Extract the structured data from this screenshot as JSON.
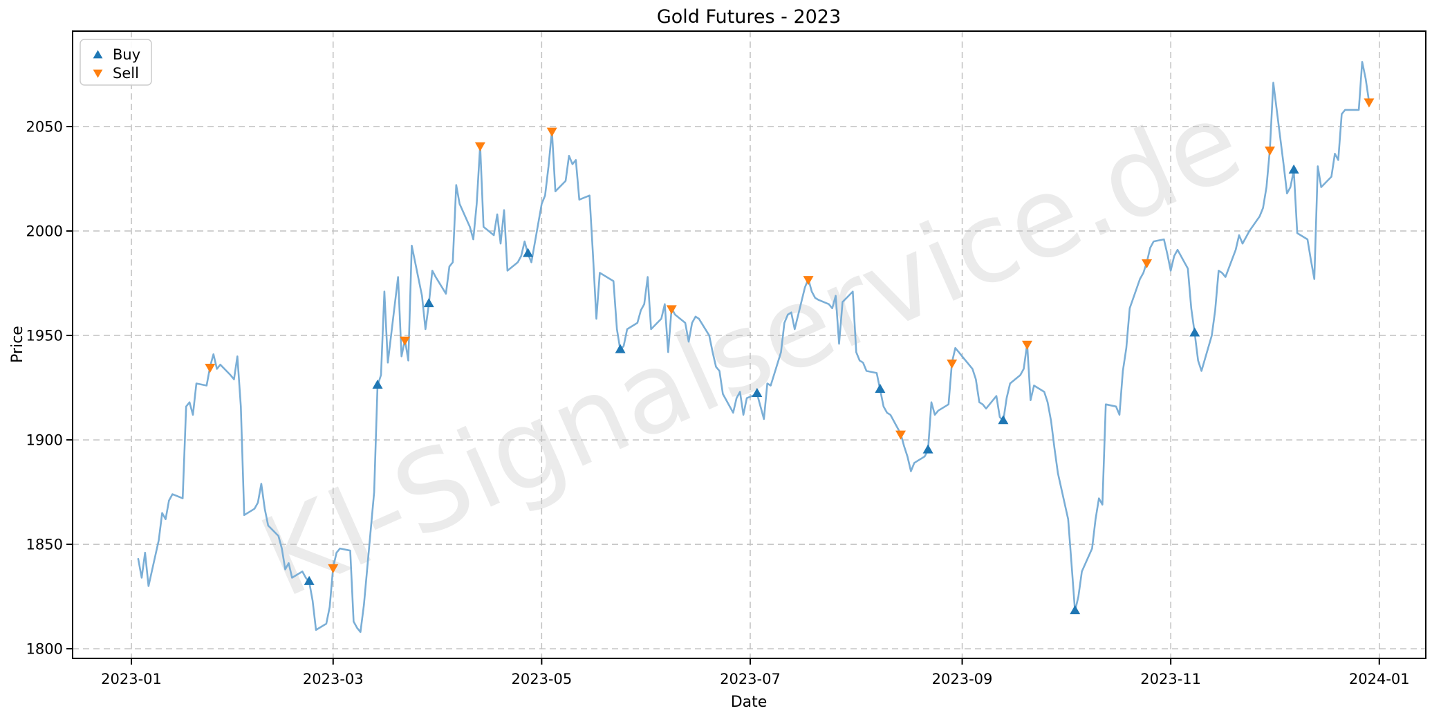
{
  "title": "Gold Futures - 2023",
  "watermark": "KI-Signalservice.de",
  "legend": {
    "position": "upper left",
    "buy_label": "Buy",
    "sell_label": "Sell"
  },
  "colors": {
    "price_line": "#7aaed6",
    "buy_marker": "#1f77b4",
    "sell_marker": "#ff7f0e",
    "grid": "#c0c0c0",
    "spine": "#000000",
    "background": "#ffffff",
    "legend_border": "#cccccc",
    "watermark_fill": "#000000",
    "watermark_opacity": 0.08
  },
  "chart_data": {
    "type": "line",
    "title": "Gold Futures - 2023",
    "xlabel": "Date",
    "ylabel": "Price",
    "grid": true,
    "grid_style": "dashed",
    "x_unit": "days_from_2023-01-01",
    "xlim": [
      -17.2,
      378.6
    ],
    "ylim": [
      1795.4,
      2095.7
    ],
    "x_ticks": [
      {
        "day": 0,
        "label": "2023-01"
      },
      {
        "day": 59,
        "label": "2023-03"
      },
      {
        "day": 120,
        "label": "2023-05"
      },
      {
        "day": 181,
        "label": "2023-07"
      },
      {
        "day": 243,
        "label": "2023-09"
      },
      {
        "day": 304,
        "label": "2023-11"
      },
      {
        "day": 365,
        "label": "2024-01"
      }
    ],
    "y_ticks": [
      1800,
      1850,
      1900,
      1950,
      2000,
      2050
    ],
    "price_line": [
      [
        2,
        1843
      ],
      [
        3,
        1834
      ],
      [
        4,
        1846
      ],
      [
        5,
        1830
      ],
      [
        8,
        1852
      ],
      [
        9,
        1865
      ],
      [
        10,
        1862
      ],
      [
        11,
        1871
      ],
      [
        12,
        1874
      ],
      [
        15,
        1872
      ],
      [
        16,
        1916
      ],
      [
        17,
        1918
      ],
      [
        18,
        1912
      ],
      [
        19,
        1927
      ],
      [
        22,
        1926
      ],
      [
        23,
        1935
      ],
      [
        24,
        1941
      ],
      [
        25,
        1934
      ],
      [
        26,
        1936
      ],
      [
        29,
        1931
      ],
      [
        30,
        1929
      ],
      [
        31,
        1940
      ],
      [
        32,
        1916
      ],
      [
        33,
        1864
      ],
      [
        36,
        1867
      ],
      [
        37,
        1870
      ],
      [
        38,
        1879
      ],
      [
        39,
        1867
      ],
      [
        40,
        1859
      ],
      [
        43,
        1854
      ],
      [
        44,
        1848
      ],
      [
        45,
        1838
      ],
      [
        46,
        1841
      ],
      [
        47,
        1834
      ],
      [
        50,
        1837
      ],
      [
        51,
        1834
      ],
      [
        52,
        1832
      ],
      [
        53,
        1823
      ],
      [
        54,
        1809
      ],
      [
        57,
        1812
      ],
      [
        58,
        1820
      ],
      [
        59,
        1839
      ],
      [
        60,
        1846
      ],
      [
        61,
        1848
      ],
      [
        64,
        1847
      ],
      [
        65,
        1813
      ],
      [
        66,
        1810
      ],
      [
        67,
        1808
      ],
      [
        68,
        1821
      ],
      [
        71,
        1875
      ],
      [
        72,
        1926
      ],
      [
        73,
        1931
      ],
      [
        74,
        1971
      ],
      [
        75,
        1937
      ],
      [
        78,
        1978
      ],
      [
        79,
        1940
      ],
      [
        80,
        1948
      ],
      [
        81,
        1938
      ],
      [
        82,
        1993
      ],
      [
        85,
        1969
      ],
      [
        86,
        1953
      ],
      [
        87,
        1965
      ],
      [
        88,
        1981
      ],
      [
        89,
        1978
      ],
      [
        92,
        1970
      ],
      [
        93,
        1983
      ],
      [
        94,
        1985
      ],
      [
        95,
        2022
      ],
      [
        96,
        2013
      ],
      [
        99,
        2002
      ],
      [
        100,
        1996
      ],
      [
        101,
        2013
      ],
      [
        102,
        2041
      ],
      [
        103,
        2002
      ],
      [
        106,
        1998
      ],
      [
        107,
        2008
      ],
      [
        108,
        1994
      ],
      [
        109,
        2010
      ],
      [
        110,
        1981
      ],
      [
        113,
        1985
      ],
      [
        114,
        1988
      ],
      [
        115,
        1995
      ],
      [
        116,
        1989
      ],
      [
        117,
        1985
      ],
      [
        120,
        2013
      ],
      [
        121,
        2017
      ],
      [
        122,
        2031
      ],
      [
        123,
        2048
      ],
      [
        124,
        2019
      ],
      [
        127,
        2024
      ],
      [
        128,
        2036
      ],
      [
        129,
        2032
      ],
      [
        130,
        2034
      ],
      [
        131,
        2015
      ],
      [
        134,
        2017
      ],
      [
        135,
        1989
      ],
      [
        136,
        1958
      ],
      [
        137,
        1980
      ],
      [
        138,
        1979
      ],
      [
        141,
        1976
      ],
      [
        142,
        1953
      ],
      [
        143,
        1943
      ],
      [
        144,
        1945
      ],
      [
        145,
        1953
      ],
      [
        148,
        1956
      ],
      [
        149,
        1962
      ],
      [
        150,
        1965
      ],
      [
        151,
        1978
      ],
      [
        152,
        1953
      ],
      [
        155,
        1958
      ],
      [
        156,
        1965
      ],
      [
        157,
        1942
      ],
      [
        158,
        1963
      ],
      [
        159,
        1960
      ],
      [
        162,
        1956
      ],
      [
        163,
        1947
      ],
      [
        164,
        1956
      ],
      [
        165,
        1959
      ],
      [
        166,
        1958
      ],
      [
        169,
        1950
      ],
      [
        170,
        1942
      ],
      [
        171,
        1935
      ],
      [
        172,
        1933
      ],
      [
        173,
        1922
      ],
      [
        176,
        1913
      ],
      [
        177,
        1920
      ],
      [
        178,
        1923
      ],
      [
        179,
        1912
      ],
      [
        180,
        1920
      ],
      [
        183,
        1922
      ],
      [
        185,
        1910
      ],
      [
        186,
        1927
      ],
      [
        187,
        1926
      ],
      [
        190,
        1942
      ],
      [
        191,
        1956
      ],
      [
        192,
        1960
      ],
      [
        193,
        1961
      ],
      [
        194,
        1953
      ],
      [
        197,
        1973
      ],
      [
        198,
        1977
      ],
      [
        199,
        1971
      ],
      [
        200,
        1968
      ],
      [
        201,
        1967
      ],
      [
        204,
        1965
      ],
      [
        205,
        1963
      ],
      [
        206,
        1969
      ],
      [
        207,
        1946
      ],
      [
        208,
        1966
      ],
      [
        211,
        1971
      ],
      [
        212,
        1942
      ],
      [
        213,
        1938
      ],
      [
        214,
        1937
      ],
      [
        215,
        1933
      ],
      [
        218,
        1932
      ],
      [
        219,
        1924
      ],
      [
        220,
        1916
      ],
      [
        221,
        1913
      ],
      [
        222,
        1912
      ],
      [
        225,
        1903
      ],
      [
        226,
        1897
      ],
      [
        227,
        1892
      ],
      [
        228,
        1885
      ],
      [
        229,
        1889
      ],
      [
        232,
        1892
      ],
      [
        233,
        1895
      ],
      [
        234,
        1918
      ],
      [
        235,
        1912
      ],
      [
        236,
        1914
      ],
      [
        239,
        1917
      ],
      [
        240,
        1937
      ],
      [
        241,
        1944
      ],
      [
        242,
        1942
      ],
      [
        243,
        1940
      ],
      [
        246,
        1934
      ],
      [
        247,
        1929
      ],
      [
        248,
        1918
      ],
      [
        249,
        1917
      ],
      [
        250,
        1915
      ],
      [
        253,
        1921
      ],
      [
        254,
        1911
      ],
      [
        255,
        1909
      ],
      [
        256,
        1920
      ],
      [
        257,
        1927
      ],
      [
        260,
        1931
      ],
      [
        261,
        1934
      ],
      [
        262,
        1946
      ],
      [
        263,
        1919
      ],
      [
        264,
        1926
      ],
      [
        267,
        1923
      ],
      [
        268,
        1918
      ],
      [
        269,
        1909
      ],
      [
        270,
        1896
      ],
      [
        271,
        1884
      ],
      [
        274,
        1862
      ],
      [
        275,
        1840
      ],
      [
        276,
        1818
      ],
      [
        277,
        1825
      ],
      [
        278,
        1837
      ],
      [
        281,
        1848
      ],
      [
        282,
        1862
      ],
      [
        283,
        1872
      ],
      [
        284,
        1869
      ],
      [
        285,
        1917
      ],
      [
        288,
        1916
      ],
      [
        289,
        1912
      ],
      [
        290,
        1933
      ],
      [
        291,
        1944
      ],
      [
        292,
        1963
      ],
      [
        295,
        1977
      ],
      [
        296,
        1980
      ],
      [
        297,
        1985
      ],
      [
        298,
        1992
      ],
      [
        299,
        1995
      ],
      [
        302,
        1996
      ],
      [
        303,
        1989
      ],
      [
        304,
        1981
      ],
      [
        305,
        1988
      ],
      [
        306,
        1991
      ],
      [
        309,
        1982
      ],
      [
        310,
        1963
      ],
      [
        311,
        1951
      ],
      [
        312,
        1938
      ],
      [
        313,
        1933
      ],
      [
        316,
        1950
      ],
      [
        317,
        1962
      ],
      [
        318,
        1981
      ],
      [
        319,
        1980
      ],
      [
        320,
        1978
      ],
      [
        323,
        1991
      ],
      [
        324,
        1998
      ],
      [
        325,
        1994
      ],
      [
        327,
        2000
      ],
      [
        330,
        2007
      ],
      [
        331,
        2011
      ],
      [
        332,
        2021
      ],
      [
        333,
        2039
      ],
      [
        334,
        2071
      ],
      [
        337,
        2032
      ],
      [
        338,
        2018
      ],
      [
        339,
        2021
      ],
      [
        340,
        2029
      ],
      [
        341,
        1999
      ],
      [
        344,
        1996
      ],
      [
        345,
        1986
      ],
      [
        346,
        1977
      ],
      [
        347,
        2031
      ],
      [
        348,
        2021
      ],
      [
        351,
        2026
      ],
      [
        352,
        2037
      ],
      [
        353,
        2034
      ],
      [
        354,
        2056
      ],
      [
        355,
        2058
      ],
      [
        359,
        2058
      ],
      [
        360,
        2081
      ],
      [
        361,
        2073
      ],
      [
        362,
        2062
      ]
    ],
    "buy_signals": [
      [
        52,
        1832
      ],
      [
        72,
        1926
      ],
      [
        87,
        1965
      ],
      [
        116,
        1989
      ],
      [
        143,
        1943
      ],
      [
        183,
        1922
      ],
      [
        219,
        1924
      ],
      [
        233,
        1895
      ],
      [
        255,
        1909
      ],
      [
        276,
        1818
      ],
      [
        311,
        1951
      ],
      [
        340,
        2029
      ]
    ],
    "sell_signals": [
      [
        23,
        1935
      ],
      [
        59,
        1839
      ],
      [
        80,
        1948
      ],
      [
        102,
        2041
      ],
      [
        123,
        2048
      ],
      [
        158,
        1963
      ],
      [
        198,
        1977
      ],
      [
        225,
        1903
      ],
      [
        240,
        1937
      ],
      [
        262,
        1946
      ],
      [
        297,
        1985
      ],
      [
        333,
        2039
      ],
      [
        362,
        2062
      ]
    ]
  }
}
